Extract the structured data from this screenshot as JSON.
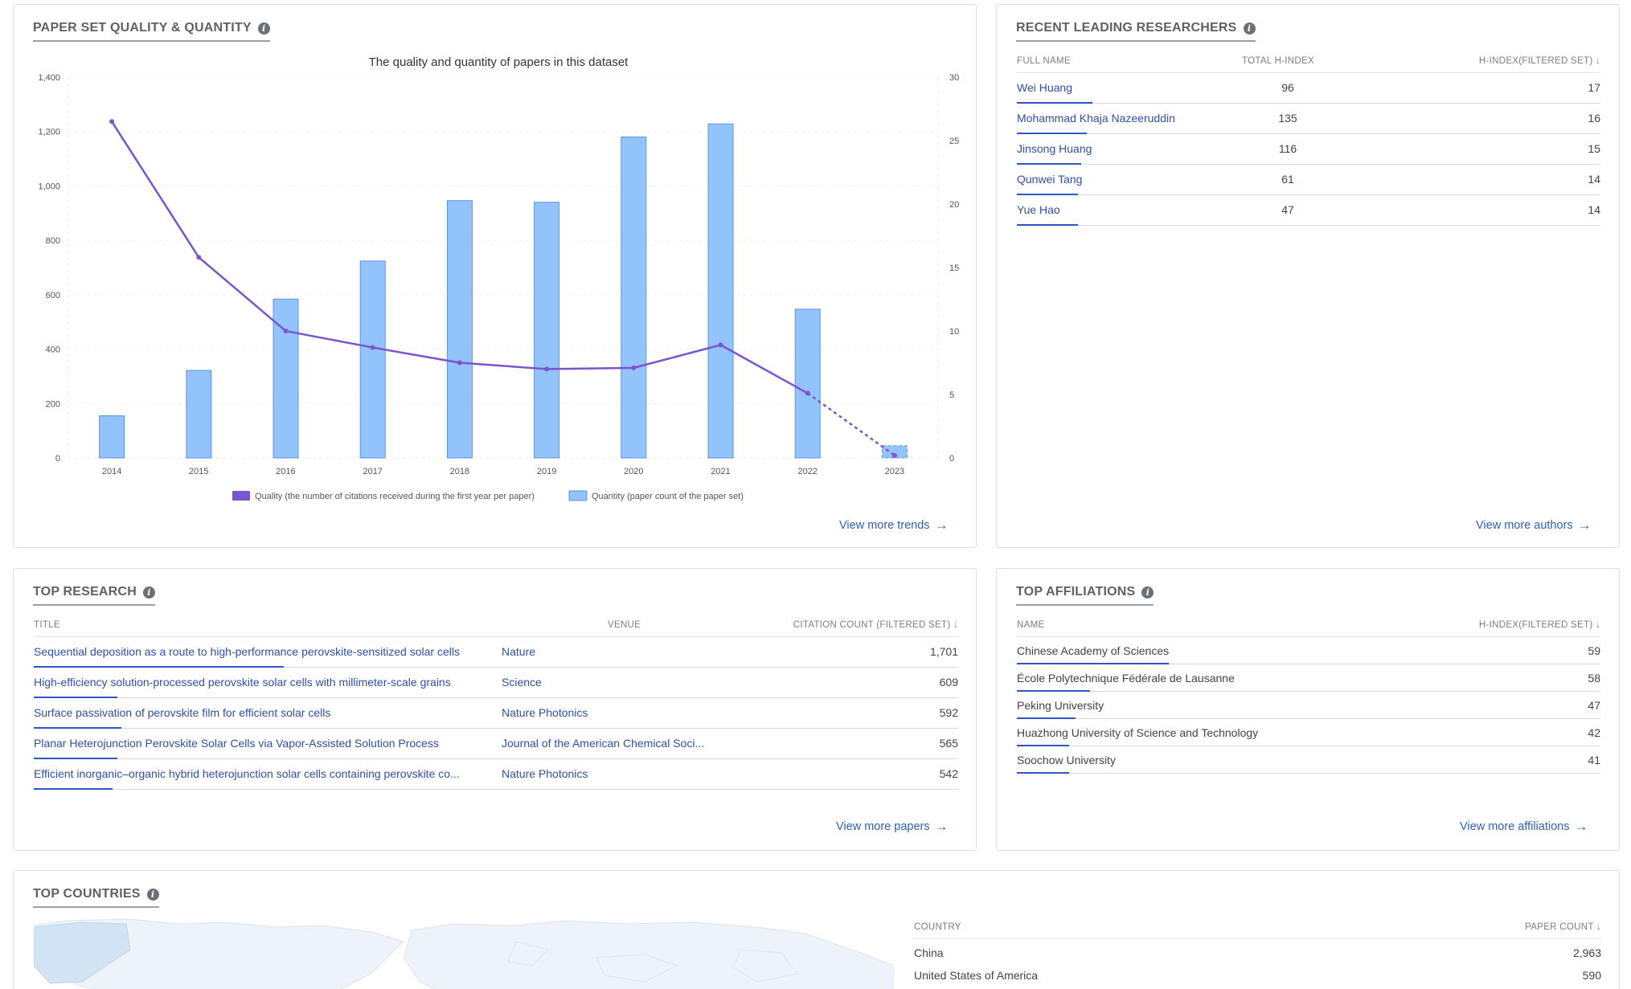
{
  "quality_card": {
    "title": "PAPER SET QUALITY & QUANTITY",
    "more": "View more trends"
  },
  "chart_data": {
    "type": "bar",
    "title": "The quality and quantity of papers in this dataset",
    "categories": [
      "2014",
      "2015",
      "2016",
      "2017",
      "2018",
      "2019",
      "2020",
      "2021",
      "2022",
      "2023"
    ],
    "series": [
      {
        "name": "Quantity (paper count of the paper set)",
        "type": "bar",
        "axis": "left",
        "values": [
          155,
          322,
          584,
          724,
          946,
          940,
          1180,
          1228,
          547,
          45
        ]
      },
      {
        "name": "Quality (the number of citations received during the first year per paper)",
        "type": "line",
        "axis": "right",
        "values": [
          26.5,
          15.8,
          10.0,
          8.7,
          7.5,
          7.0,
          7.1,
          8.9,
          5.1,
          0.2
        ]
      }
    ],
    "y_left": {
      "min": 0,
      "max": 1400,
      "ticks": [
        "0",
        "200",
        "400",
        "600",
        "800",
        "1,000",
        "1,200",
        "1,400"
      ]
    },
    "y_right": {
      "min": 0,
      "max": 30,
      "ticks": [
        "0",
        "5",
        "10",
        "15",
        "20",
        "25",
        "30"
      ]
    },
    "legend_position": "bottom",
    "colors": {
      "bar_fill": "#93c3fb",
      "bar_stroke": "#5b96e8",
      "line": "#7b55cf"
    }
  },
  "researchers": {
    "title": "RECENT LEADING RESEARCHERS",
    "headers": {
      "name": "FULL NAME",
      "total": "TOTAL H-INDEX",
      "filtered": "H-INDEX(FILTERED SET) ↓"
    },
    "rows": [
      {
        "name": "Wei Huang",
        "total": "96",
        "filtered": "17",
        "share": 0.13
      },
      {
        "name": "Mohammad Khaja Nazeeruddin",
        "total": "135",
        "filtered": "16",
        "share": 0.12
      },
      {
        "name": "Jinsong Huang",
        "total": "116",
        "filtered": "15",
        "share": 0.11
      },
      {
        "name": "Qunwei Tang",
        "total": "61",
        "filtered": "14",
        "share": 0.105
      },
      {
        "name": "Yue Hao",
        "total": "47",
        "filtered": "14",
        "share": 0.105
      }
    ],
    "more": "View more authors"
  },
  "research": {
    "title": "TOP RESEARCH",
    "headers": {
      "title": "TITLE",
      "venue": "VENUE",
      "count": "CITATION COUNT (FILTERED SET) ↓"
    },
    "rows": [
      {
        "title": "Sequential deposition as a route to high-performance perovskite-sensitized solar cells",
        "venue": "Nature",
        "count": "1,701",
        "share": 0.27
      },
      {
        "title": "High-efficiency solution-processed perovskite solar cells with millimeter-scale grains",
        "venue": "Science",
        "count": "609",
        "share": 0.09
      },
      {
        "title": "Surface passivation of perovskite film for efficient solar cells",
        "venue": "Nature Photonics",
        "count": "592",
        "share": 0.095
      },
      {
        "title": "Planar Heterojunction Perovskite Solar Cells via Vapor-Assisted Solution Process",
        "venue": "Journal of the American Chemical Soci...",
        "count": "565",
        "share": 0.09
      },
      {
        "title": "Efficient inorganic–organic hybrid heterojunction solar cells containing perovskite co...",
        "venue": "Nature Photonics",
        "count": "542",
        "share": 0.085
      }
    ],
    "more": "View more papers"
  },
  "affiliations": {
    "title": "TOP AFFILIATIONS",
    "headers": {
      "name": "NAME",
      "filtered": "H-INDEX(FILTERED SET) ↓"
    },
    "rows": [
      {
        "name": "Chinese Academy of Sciences",
        "filtered": "59",
        "share": 0.26
      },
      {
        "name": "École Polytechnique Fédérale de Lausanne",
        "filtered": "58",
        "share": 0.125
      },
      {
        "name": "Peking University",
        "filtered": "47",
        "share": 0.1
      },
      {
        "name": "Huazhong University of Science and Technology",
        "filtered": "42",
        "share": 0.09
      },
      {
        "name": "Soochow University",
        "filtered": "41",
        "share": 0.09
      }
    ],
    "more": "View more affiliations"
  },
  "countries": {
    "title": "TOP COUNTRIES",
    "headers": {
      "name": "COUNTRY",
      "count": "PAPER COUNT ↓"
    },
    "rows": [
      {
        "name": "China",
        "count": "2,963"
      },
      {
        "name": "United States of America",
        "count": "590"
      }
    ]
  }
}
